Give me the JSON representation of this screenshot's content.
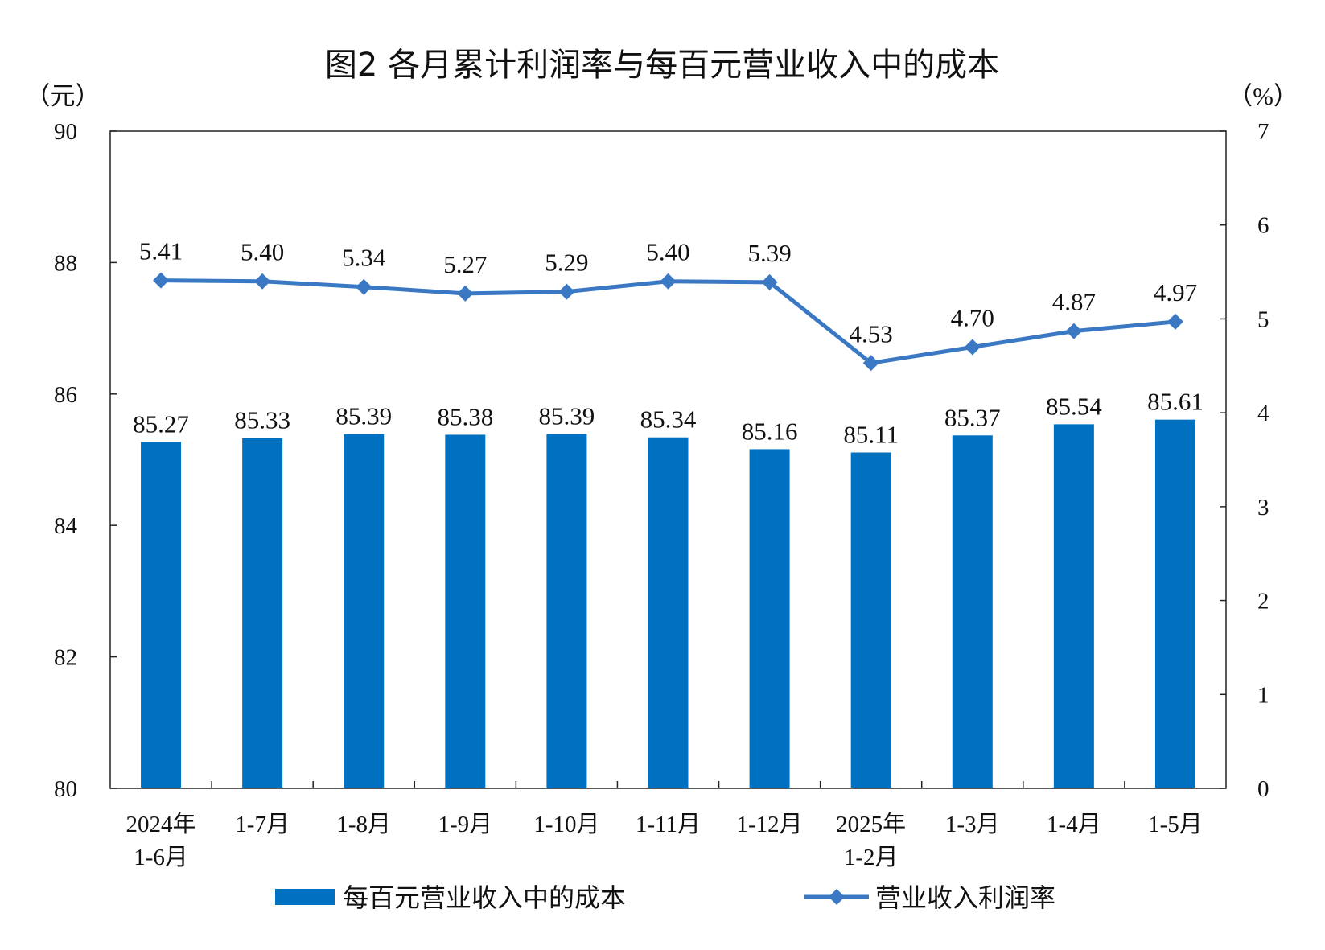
{
  "chart_data": {
    "type": "bar+line",
    "title": "图2  各月累计利润率与每百元营业收入中的成本",
    "left_axis_unit": "（元）",
    "right_axis_unit": "（%）",
    "categories": [
      [
        "2024年",
        "1-6月"
      ],
      [
        "1-7月"
      ],
      [
        "1-8月"
      ],
      [
        "1-9月"
      ],
      [
        "1-10月"
      ],
      [
        "1-11月"
      ],
      [
        "1-12月"
      ],
      [
        "2025年",
        "1-2月"
      ],
      [
        "1-3月"
      ],
      [
        "1-4月"
      ],
      [
        "1-5月"
      ]
    ],
    "ylim_left": [
      80,
      90
    ],
    "yticks_left": [
      "80",
      "82",
      "84",
      "86",
      "88",
      "90"
    ],
    "ylim_right": [
      0,
      7
    ],
    "yticks_right": [
      "0",
      "1",
      "2",
      "3",
      "4",
      "5",
      "6",
      "7"
    ],
    "series": [
      {
        "name": "每百元营业收入中的成本",
        "type": "bar",
        "axis": "left",
        "color": "#0070C0",
        "values": [
          85.27,
          85.33,
          85.39,
          85.38,
          85.39,
          85.34,
          85.16,
          85.11,
          85.37,
          85.54,
          85.61
        ],
        "labels": [
          "85.27",
          "85.33",
          "85.39",
          "85.38",
          "85.39",
          "85.34",
          "85.16",
          "85.11",
          "85.37",
          "85.54",
          "85.61"
        ]
      },
      {
        "name": "营业收入利润率",
        "type": "line",
        "axis": "right",
        "color": "#3A78C3",
        "marker": "diamond",
        "values": [
          5.41,
          5.4,
          5.34,
          5.27,
          5.29,
          5.4,
          5.39,
          4.53,
          4.7,
          4.87,
          4.97
        ],
        "labels": [
          "5.41",
          "5.40",
          "5.34",
          "5.27",
          "5.29",
          "5.40",
          "5.39",
          "4.53",
          "4.70",
          "4.87",
          "4.97"
        ]
      }
    ],
    "grid": false,
    "legend_position": "bottom"
  }
}
